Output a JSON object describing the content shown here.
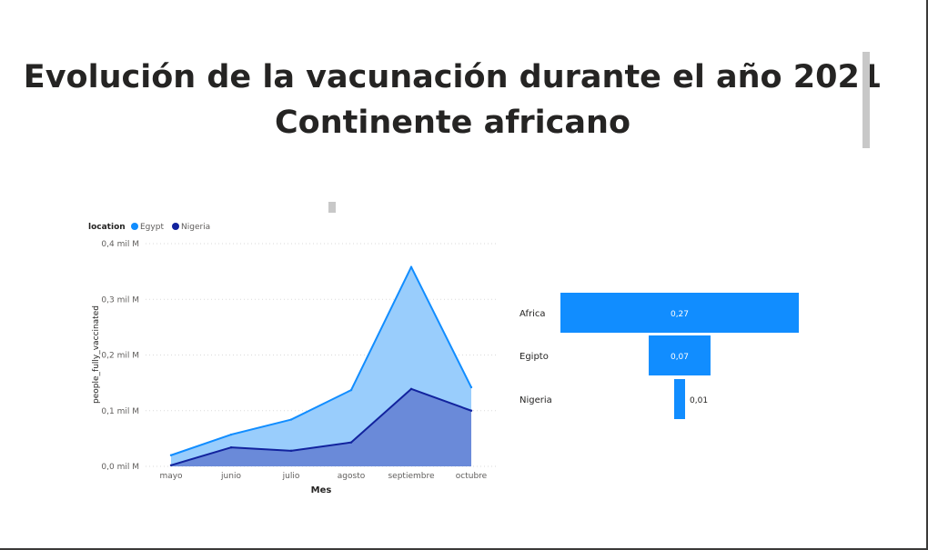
{
  "header": {
    "title_line1": "Evolución de la vacunación durante el año 2021",
    "title_line2": "Continente africano"
  },
  "colors": {
    "egypt_line": "#118dff",
    "egypt_fill": "#99cdfc",
    "nigeria_line": "#12239e",
    "nigeria_fill": "#6a8ad9",
    "funnel_bar": "#118dff",
    "grid": "#dadada",
    "axis_text": "#605e5c",
    "title_text": "#252423"
  },
  "chart_data": [
    {
      "type": "area",
      "legend_title": "location",
      "xlabel": "Mes",
      "ylabel": "people_fully_vaccinated",
      "categories": [
        "mayo",
        "junio",
        "julio",
        "agosto",
        "septiembre",
        "octubre"
      ],
      "yticks": [
        "0,0 mil M",
        "0,1 mil M",
        "0,2 mil M",
        "0,3 mil M",
        "0,4 mil M"
      ],
      "ylim": [
        0,
        0.4
      ],
      "grid": true,
      "legend_position": "top-left",
      "series": [
        {
          "name": "Egypt",
          "values": [
            0.02,
            0.057,
            0.084,
            0.137,
            0.358,
            0.142
          ]
        },
        {
          "name": "Nigeria",
          "values": [
            0.002,
            0.034,
            0.028,
            0.043,
            0.139,
            0.1
          ]
        }
      ]
    },
    {
      "type": "bar",
      "orientation": "funnel",
      "categories": [
        "Africa",
        "Egipto",
        "Nigeria"
      ],
      "values": [
        0.27,
        0.07,
        0.01
      ],
      "value_labels": [
        "0,27",
        "0,07",
        "0,01"
      ]
    }
  ]
}
